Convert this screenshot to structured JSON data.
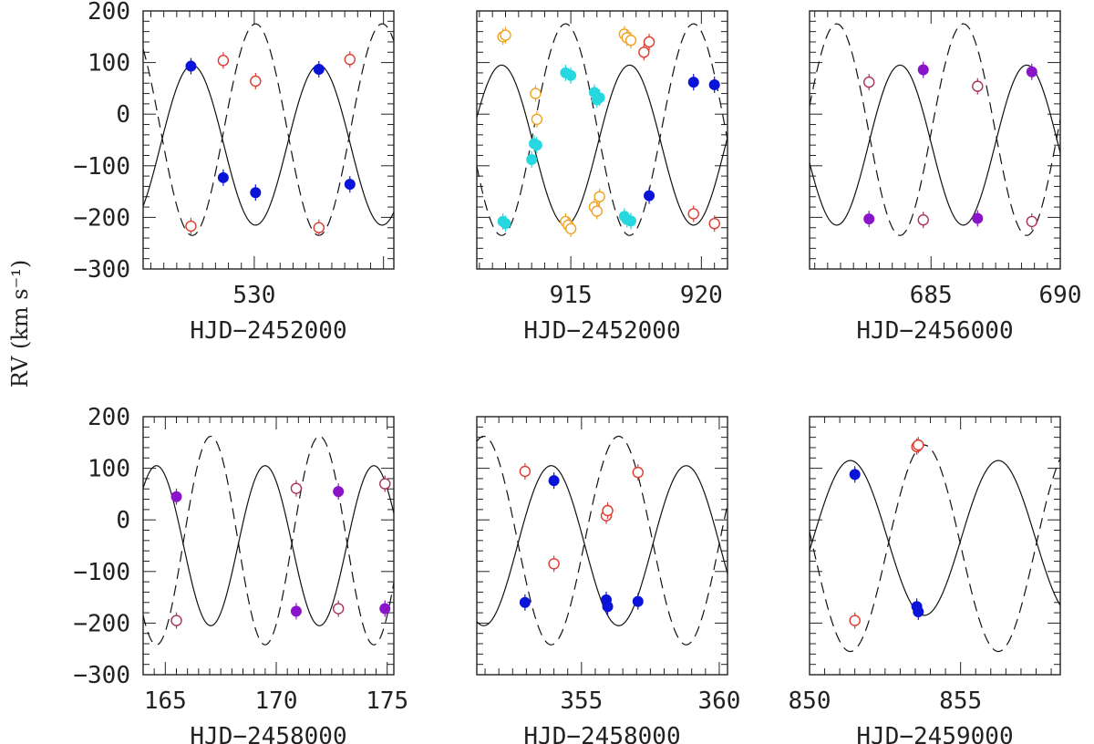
{
  "chart_data": {
    "type": "scatter",
    "ylabel": "RV (km s⁻¹)",
    "ylim": [
      -300,
      200
    ],
    "yticks": [
      200,
      100,
      0,
      -100,
      -200,
      -300
    ],
    "panels": [
      {
        "xlabel": "HJD−2452000",
        "xlim": [
          525.7,
          535.4
        ],
        "xticks": [
          530
        ],
        "fit": {
          "primary": {
            "gamma": -60,
            "K": 155,
            "P": 4.9,
            "peak": 527.6
          },
          "secondary": {
            "gamma": -30,
            "K": 205,
            "P": 4.9,
            "peak": 530.05
          }
        },
        "series": [
          {
            "name": "primary",
            "marker": "filled",
            "color": "#0a14d8",
            "x": [
              527.55,
              528.8,
              530.05,
              532.5,
              533.7
            ],
            "y": [
              93,
              -123,
              -152,
              87,
              -136
            ]
          },
          {
            "name": "secondary",
            "marker": "open",
            "color": "#e0392e",
            "x": [
              527.55,
              528.8,
              530.05,
              532.5,
              533.7
            ],
            "y": [
              -217,
              104,
              64,
              -220,
              106
            ]
          }
        ]
      },
      {
        "xlabel": "HJD−2452000",
        "xlim": [
          911.4,
          921.0
        ],
        "xticks": [
          915,
          920
        ],
        "fit": {
          "primary": {
            "gamma": -60,
            "K": 155,
            "P": 4.9,
            "peak": 917.25
          },
          "secondary": {
            "gamma": -30,
            "K": 205,
            "P": 4.9,
            "peak": 919.7
          }
        },
        "series": [
          {
            "name": "primary",
            "marker": "filled",
            "color": "#0a14d8",
            "x": [
              918.0,
              919.7,
              920.5
            ],
            "y": [
              -158,
              62,
              57
            ]
          },
          {
            "name": "secondary",
            "marker": "open",
            "color": "#e0392e",
            "x": [
              917.8,
              918.0,
              919.7,
              920.5
            ],
            "y": [
              120,
              140,
              -193,
              -212
            ]
          },
          {
            "name": "primary-alt",
            "marker": "filled",
            "color": "#26d7e0",
            "x": [
              912.4,
              912.5,
              913.5,
              913.6,
              913.7,
              914.8,
              915.0,
              915.9,
              916.0,
              916.1,
              917.05,
              917.15,
              917.3
            ],
            "y": [
              -208,
              -212,
              -88,
              -57,
              -60,
              80,
              75,
              42,
              28,
              32,
              -198,
              -204,
              -207
            ]
          },
          {
            "name": "secondary-alt",
            "marker": "open",
            "color": "#f2a01e",
            "x": [
              912.4,
              912.5,
              913.65,
              913.7,
              914.8,
              914.9,
              915.0,
              915.9,
              916.0,
              916.1,
              917.05,
              917.15,
              917.3
            ],
            "y": [
              150,
              153,
              40,
              -10,
              -208,
              -215,
              -222,
              -180,
              -188,
              -160,
              155,
              148,
              143
            ]
          }
        ]
      },
      {
        "xlabel": "HJD−2456000",
        "xlim": [
          680.3,
          690.0
        ],
        "xticks": [
          685,
          690
        ],
        "fit": {
          "primary": {
            "gamma": -60,
            "K": 155,
            "P": 4.9,
            "peak": 683.8
          },
          "secondary": {
            "gamma": -30,
            "K": 205,
            "P": 4.9,
            "peak": 681.35
          }
        },
        "series": [
          {
            "name": "primary",
            "marker": "filled",
            "color": "#8a14c8",
            "x": [
              682.6,
              684.7,
              686.8,
              688.9
            ],
            "y": [
              -203,
              86,
              -202,
              82
            ]
          },
          {
            "name": "secondary",
            "marker": "open",
            "color": "#a8325a",
            "x": [
              682.6,
              684.7,
              686.8,
              688.9
            ],
            "y": [
              62,
              -205,
              54,
              -208
            ]
          }
        ]
      },
      {
        "xlabel": "HJD−2458000",
        "xlim": [
          164.0,
          175.3
        ],
        "xticks": [
          165,
          170,
          175
        ],
        "fit": {
          "primary": {
            "gamma": -50,
            "K": 155,
            "P": 4.9,
            "peak": 164.6
          },
          "secondary": {
            "gamma": -40,
            "K": 202,
            "P": 4.9,
            "peak": 167.05
          }
        },
        "series": [
          {
            "name": "primary",
            "marker": "filled",
            "color": "#8a14c8",
            "x": [
              165.5,
              170.9,
              172.8,
              174.9
            ],
            "y": [
              45,
              -177,
              55,
              -172
            ]
          },
          {
            "name": "secondary",
            "marker": "open",
            "color": "#a8325a",
            "x": [
              165.5,
              170.9,
              172.8,
              174.9
            ],
            "y": [
              -195,
              61,
              -172,
              70
            ]
          }
        ]
      },
      {
        "xlabel": "HJD−2458000",
        "xlim": [
          351.2,
          360.3
        ],
        "xticks": [
          355,
          360
        ],
        "fit": {
          "primary": {
            "gamma": -50,
            "K": 155,
            "P": 4.9,
            "peak": 353.9
          },
          "secondary": {
            "gamma": -40,
            "K": 202,
            "P": 4.9,
            "peak": 356.35
          }
        },
        "series": [
          {
            "name": "primary",
            "marker": "filled",
            "color": "#0a14d8",
            "x": [
              352.95,
              354.0,
              355.9,
              355.95,
              357.05
            ],
            "y": [
              -160,
              76,
              -155,
              -168,
              -158
            ]
          },
          {
            "name": "secondary",
            "marker": "open",
            "color": "#e0392e",
            "x": [
              352.95,
              354.0,
              355.9,
              355.95,
              357.05
            ],
            "y": [
              94,
              -85,
              8,
              18,
              92
            ]
          }
        ]
      },
      {
        "xlabel": "HJD−2459000",
        "xlim": [
          850.0,
          858.3
        ],
        "xticks": [
          850,
          855
        ],
        "fit": {
          "primary": {
            "gamma": -35,
            "K": 150,
            "P": 4.9,
            "peak": 851.35
          },
          "secondary": {
            "gamma": -55,
            "K": 200,
            "P": 4.9,
            "peak": 853.8
          }
        },
        "series": [
          {
            "name": "primary",
            "marker": "filled",
            "color": "#0a14d8",
            "x": [
              851.5,
              853.55,
              853.6
            ],
            "y": [
              88,
              -168,
              -178
            ]
          },
          {
            "name": "secondary",
            "marker": "open",
            "color": "#e0392e",
            "x": [
              851.5,
              853.55,
              853.6
            ],
            "y": [
              -195,
              142,
              145
            ]
          }
        ]
      }
    ]
  }
}
